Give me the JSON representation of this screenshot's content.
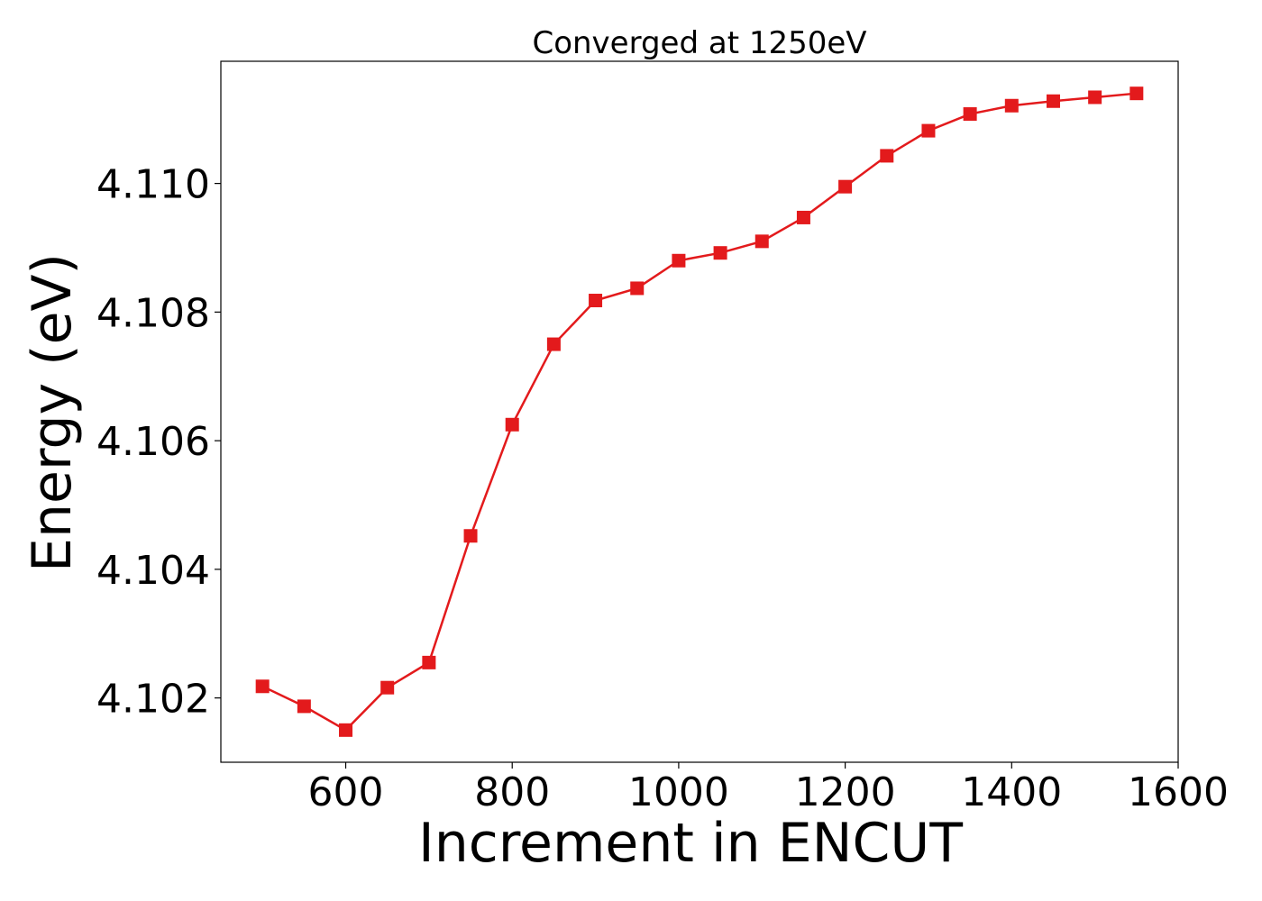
{
  "chart_data": {
    "type": "line",
    "title": "Converged at 1250eV",
    "xlabel": "Increment in ENCUT",
    "ylabel": "Energy (eV)",
    "xlim": [
      450,
      1600
    ],
    "ylim": [
      4.101,
      4.1119
    ],
    "xticks": [
      600,
      800,
      1000,
      1200,
      1400,
      1600
    ],
    "yticks": [
      4.102,
      4.104,
      4.106,
      4.108,
      4.11
    ],
    "xtick_labels": [
      "600",
      "800",
      "1000",
      "1200",
      "1400",
      "1600"
    ],
    "ytick_labels": [
      "4.102",
      "4.104",
      "4.106",
      "4.108",
      "4.110"
    ],
    "grid": false,
    "series": [
      {
        "color": "#e31a1c",
        "marker": "square",
        "x": [
          500,
          550,
          600,
          650,
          700,
          750,
          800,
          850,
          900,
          950,
          1000,
          1050,
          1100,
          1150,
          1200,
          1250,
          1300,
          1350,
          1400,
          1450,
          1500,
          1550
        ],
        "y": [
          4.10218,
          4.10187,
          4.1015,
          4.10216,
          4.10255,
          4.10452,
          4.10625,
          4.1075,
          4.10818,
          4.10837,
          4.1088,
          4.10892,
          4.1091,
          4.10947,
          4.10995,
          4.11043,
          4.11082,
          4.11108,
          4.11121,
          4.11128,
          4.11134,
          4.1114
        ]
      }
    ]
  }
}
